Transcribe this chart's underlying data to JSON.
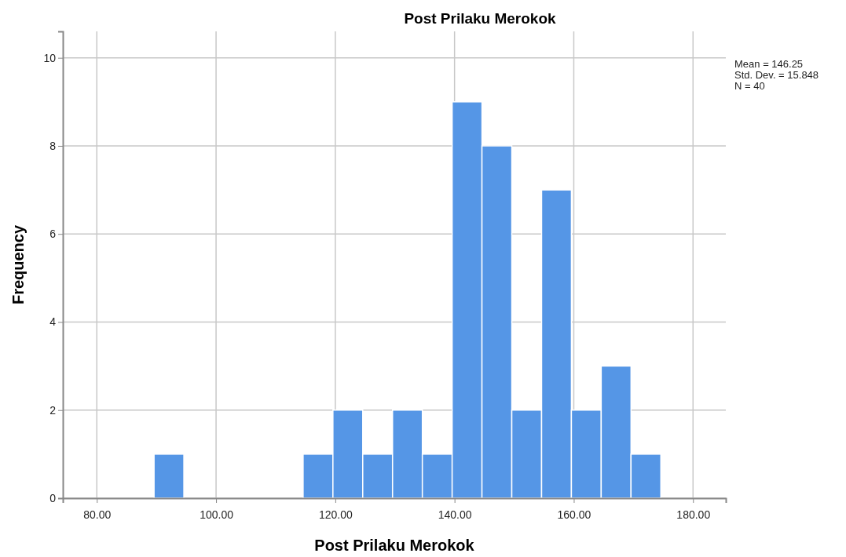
{
  "chart_data": {
    "type": "histogram",
    "title": "Post Prilaku Merokok",
    "xlabel": "Post Prilaku Merokok",
    "ylabel": "Frequency",
    "bins": [
      89.6,
      94.6,
      99.6,
      104.6,
      109.6,
      114.6,
      119.6,
      124.6,
      129.6,
      134.6,
      139.6,
      144.6,
      149.6,
      154.6,
      159.6,
      164.6,
      169.6,
      174.6
    ],
    "values": [
      1,
      0,
      0,
      0,
      0,
      1,
      2,
      1,
      2,
      1,
      9,
      8,
      2,
      7,
      2,
      3,
      1
    ],
    "color": "#5596e6",
    "xlim": [
      74.3,
      185.5
    ],
    "ylim": [
      0,
      10.6
    ],
    "xticks": [
      {
        "value": 80,
        "label": "80.00"
      },
      {
        "value": 100,
        "label": "100.00"
      },
      {
        "value": 120,
        "label": "120.00"
      },
      {
        "value": 140,
        "label": "140.00"
      },
      {
        "value": 160,
        "label": "160.00"
      },
      {
        "value": 180,
        "label": "180.00"
      }
    ],
    "yticks": [
      0,
      2,
      4,
      6,
      8,
      10
    ],
    "grid": true,
    "annotations": [
      "Mean = 146.25",
      "Std. Dev. = 15.848",
      "N = 40"
    ]
  }
}
